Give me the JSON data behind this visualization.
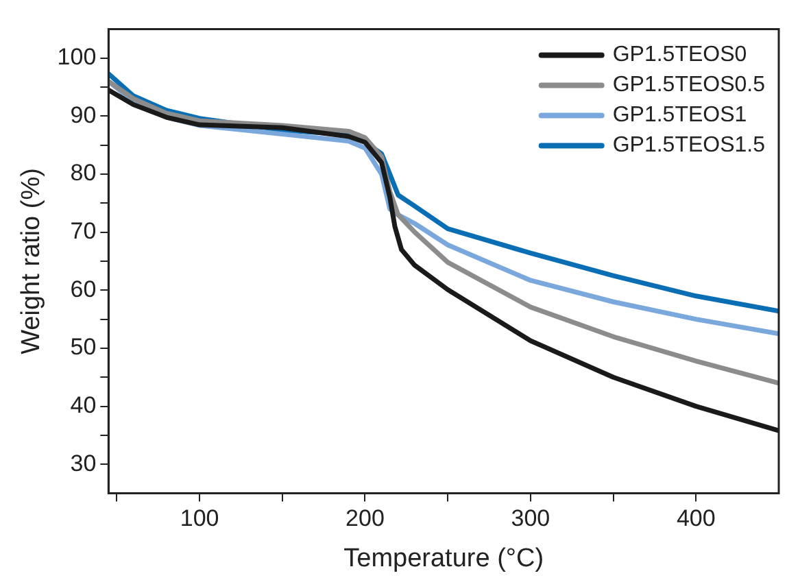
{
  "chart_data": {
    "type": "line",
    "xlabel": "Temperature (°C)",
    "ylabel": "Weight ratio (%)",
    "xlim": [
      45,
      450
    ],
    "ylim": [
      25,
      105
    ],
    "xticks": [
      {
        "value": 50,
        "label": null
      },
      100,
      {
        "value": 150,
        "label": null
      },
      200,
      {
        "value": 250,
        "label": null
      },
      300,
      {
        "value": 350,
        "label": null
      },
      400
    ],
    "yticks": [
      30,
      {
        "value": 35,
        "label": null
      },
      40,
      {
        "value": 45,
        "label": null
      },
      50,
      {
        "value": 55,
        "label": null
      },
      60,
      {
        "value": 65,
        "label": null
      },
      70,
      {
        "value": 75,
        "label": null
      },
      80,
      {
        "value": 85,
        "label": null
      },
      90,
      {
        "value": 95,
        "label": null
      },
      100
    ],
    "grid": false,
    "legend": "top right",
    "marker": "none",
    "line_style": "solid",
    "series": [
      {
        "name": "GP1.5TEOS0",
        "color": "#1a1a1a",
        "x": [
          45,
          60,
          80,
          100,
          150,
          190,
          200,
          210,
          215,
          218,
          222,
          230,
          250,
          300,
          350,
          400,
          450
        ],
        "values": [
          94.5,
          92,
          89.8,
          88.5,
          88,
          86.5,
          85.5,
          82,
          76,
          71,
          67,
          64.3,
          60.1,
          51.3,
          45,
          40,
          35.8
        ]
      },
      {
        "name": "GP1.5TEOS0.5",
        "color": "#8c8c8c",
        "x": [
          45,
          60,
          80,
          100,
          150,
          190,
          200,
          210,
          215,
          220,
          230,
          250,
          300,
          350,
          400,
          450
        ],
        "values": [
          96,
          93,
          90.5,
          89.2,
          88.4,
          87.4,
          86.3,
          83,
          77,
          73,
          70,
          64.8,
          57.1,
          52,
          47.8,
          44
        ]
      },
      {
        "name": "GP1.5TEOS1",
        "color": "#7aa7dc",
        "x": [
          45,
          60,
          80,
          100,
          150,
          190,
          200,
          210,
          215,
          220,
          230,
          250,
          300,
          350,
          400,
          450
        ],
        "values": [
          96,
          92.5,
          89.8,
          88.4,
          86.9,
          85.7,
          84.5,
          80,
          74,
          73,
          71.5,
          67.8,
          61.7,
          58,
          55,
          52.5
        ]
      },
      {
        "name": "GP1.5TEOS1.5",
        "color": "#0a6eb4",
        "x": [
          45,
          60,
          80,
          100,
          150,
          190,
          200,
          205,
          210,
          215,
          220,
          230,
          250,
          300,
          350,
          400,
          450
        ],
        "values": [
          97.3,
          93.5,
          91,
          89.6,
          87.6,
          86.8,
          85.8,
          84.5,
          83.5,
          80,
          76.4,
          74.5,
          70.6,
          66.4,
          62.5,
          59,
          56.4
        ]
      }
    ]
  }
}
